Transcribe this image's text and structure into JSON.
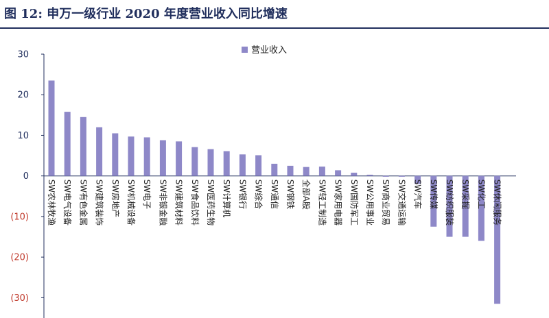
{
  "header": {
    "title": "图 12:  申万一级行业 2020 年度营业收入同比增速"
  },
  "chart_data": {
    "type": "bar",
    "series": [
      {
        "name": "营业收入",
        "values": [
          23.5,
          15.8,
          14.5,
          12.0,
          10.5,
          9.7,
          9.5,
          8.8,
          8.5,
          7.1,
          6.6,
          6.1,
          5.3,
          5.1,
          3.0,
          2.5,
          2.2,
          2.3,
          1.4,
          0.8,
          0.3,
          -0.2,
          -0.2,
          -2.0,
          -12.5,
          -15.0,
          -15.0,
          -16.0,
          -31.5
        ]
      }
    ],
    "categories": [
      "SW农林牧渔",
      "SW电气设备",
      "SW有色金属",
      "SW建筑装饰",
      "SW房地产",
      "SW机械设备",
      "SW电子",
      "SW非银金融",
      "SW建筑材料",
      "SW食品饮料",
      "SW医药生物",
      "SW计算机",
      "SW银行",
      "SW综合",
      "SW通信",
      "SW钢铁",
      "全部A股",
      "SW轻工制造",
      "SW家用电器",
      "SW国防军工",
      "SW公用事业",
      "SW商业贸易",
      "SW交通运输",
      "SW汽车",
      "SW传媒",
      "SW纺织服装",
      "SW采掘",
      "SW化工",
      "SW休闲服务"
    ],
    "ylim": [
      -35,
      30
    ],
    "yticks": [
      30,
      20,
      10,
      0,
      -10,
      -20,
      -30
    ],
    "ytick_labels": [
      "30",
      "20",
      "10",
      "0",
      "(10)",
      "(20)",
      "(30)"
    ],
    "colors": {
      "bar": "#8e88c8",
      "positive_tick": "#1f2d5c",
      "negative_tick": "#c0392b",
      "axis": "#1f2d5c"
    },
    "grid": false,
    "legend_position": "top-center"
  }
}
